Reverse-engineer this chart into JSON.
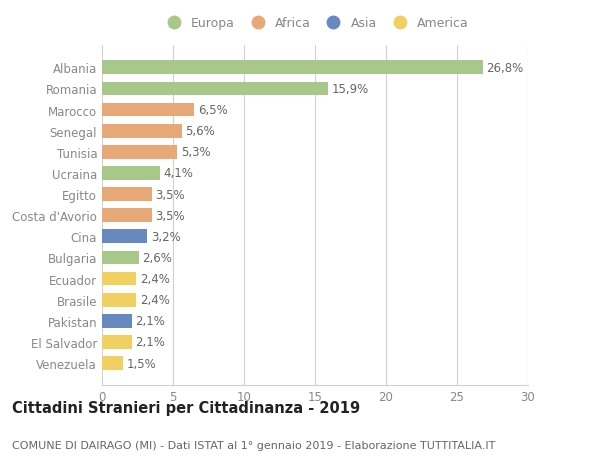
{
  "countries": [
    "Albania",
    "Romania",
    "Marocco",
    "Senegal",
    "Tunisia",
    "Ucraina",
    "Egitto",
    "Costa d'Avorio",
    "Cina",
    "Bulgaria",
    "Ecuador",
    "Brasile",
    "Pakistan",
    "El Salvador",
    "Venezuela"
  ],
  "values": [
    26.8,
    15.9,
    6.5,
    5.6,
    5.3,
    4.1,
    3.5,
    3.5,
    3.2,
    2.6,
    2.4,
    2.4,
    2.1,
    2.1,
    1.5
  ],
  "labels": [
    "26,8%",
    "15,9%",
    "6,5%",
    "5,6%",
    "5,3%",
    "4,1%",
    "3,5%",
    "3,5%",
    "3,2%",
    "2,6%",
    "2,4%",
    "2,4%",
    "2,1%",
    "2,1%",
    "1,5%"
  ],
  "regions": [
    "Europa",
    "Europa",
    "Africa",
    "Africa",
    "Africa",
    "Europa",
    "Africa",
    "Africa",
    "Asia",
    "Europa",
    "America",
    "America",
    "Asia",
    "America",
    "America"
  ],
  "region_colors": {
    "Europa": "#a8c88a",
    "Africa": "#e8a878",
    "Asia": "#6888c0",
    "America": "#f0d060"
  },
  "legend_order": [
    "Europa",
    "Africa",
    "Asia",
    "America"
  ],
  "legend_colors": [
    "#a8c88a",
    "#e8a878",
    "#6888c0",
    "#f0d060"
  ],
  "xlim": [
    0,
    30
  ],
  "xticks": [
    0,
    5,
    10,
    15,
    20,
    25,
    30
  ],
  "background_color": "#ffffff",
  "grid_color": "#d0d0d0",
  "title": "Cittadini Stranieri per Cittadinanza - 2019",
  "subtitle": "COMUNE DI DAIRAGO (MI) - Dati ISTAT al 1° gennaio 2019 - Elaborazione TUTTITALIA.IT",
  "bar_height": 0.65,
  "label_fontsize": 8.5,
  "tick_fontsize": 8.5,
  "title_fontsize": 10.5,
  "subtitle_fontsize": 8.0,
  "label_color": "#666666",
  "tick_color": "#888888"
}
